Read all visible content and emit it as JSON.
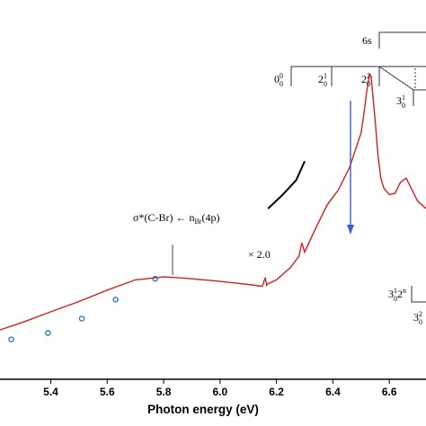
{
  "chart_data": {
    "type": "line",
    "xlabel": "Photon energy (eV)",
    "xlim": [
      5.22,
      6.73
    ],
    "ylim": [
      0,
      1
    ],
    "x_ticks": [
      "5.4",
      "5.6",
      "5.8",
      "6.0",
      "6.2",
      "6.4",
      "6.6"
    ],
    "x_tick_values": [
      5.4,
      5.6,
      5.8,
      6.0,
      6.2,
      6.4,
      6.6
    ],
    "colors": {
      "spectrum": "#d42020",
      "scaled": "#000000",
      "circles": "#1f6fb4",
      "arrow": "#3a5fd0"
    },
    "series": [
      {
        "kind": "line",
        "x": [
          5.22,
          5.3,
          5.4,
          5.5,
          5.6,
          5.7,
          5.8,
          5.85,
          5.9,
          6.0,
          6.1,
          6.15,
          6.16,
          6.165,
          6.17,
          6.2,
          6.25,
          6.28,
          6.29,
          6.3,
          6.34,
          6.38,
          6.42,
          6.46,
          6.48,
          6.5,
          6.51,
          6.52,
          6.53,
          6.535,
          6.54,
          6.55,
          6.56,
          6.57,
          6.58,
          6.59,
          6.6,
          6.62,
          6.64,
          6.66,
          6.68,
          6.7,
          6.73
        ],
        "y": [
          0.13,
          0.15,
          0.178,
          0.205,
          0.235,
          0.262,
          0.27,
          0.268,
          0.265,
          0.258,
          0.25,
          0.245,
          0.268,
          0.248,
          0.252,
          0.262,
          0.295,
          0.325,
          0.36,
          0.335,
          0.4,
          0.46,
          0.5,
          0.56,
          0.605,
          0.65,
          0.7,
          0.76,
          0.805,
          0.8,
          0.76,
          0.68,
          0.59,
          0.53,
          0.505,
          0.495,
          0.487,
          0.49,
          0.52,
          0.53,
          0.5,
          0.47,
          0.45
        ]
      },
      {
        "kind": "scaled-segment",
        "x": [
          6.17,
          6.22,
          6.27,
          6.3
        ],
        "y": [
          0.45,
          0.485,
          0.525,
          0.575
        ]
      },
      {
        "kind": "circles",
        "x": [
          5.26,
          5.39,
          5.51,
          5.63,
          5.77
        ],
        "y": [
          0.105,
          0.122,
          0.16,
          0.21,
          0.265
        ]
      }
    ],
    "annotations": {
      "transition_prefix": "σ*(C-Br) ← n",
      "transition_sub": "Br",
      "transition_suffix": "(4p)",
      "scale_label": "× 2.0",
      "rydberg_label": "6s",
      "prog_00_base": "0",
      "prog_00_sup": "0",
      "prog_00_sub": "0",
      "prog_21_base": "2",
      "prog_21_sup": "1",
      "prog_21_sub": "0",
      "prog_22_base": "2",
      "prog_22_sup": "2",
      "prog_22_sub": "0",
      "prog_31_base": "3",
      "prog_31_sup": "1",
      "prog_31_sub": "0",
      "prog_312n_a": "3",
      "prog_312n_sup1": "1",
      "prog_312n_sub1": "0",
      "prog_312n_b": "2",
      "prog_312n_sup2": "n",
      "prog_32_base": "3",
      "prog_32_sup": "2",
      "prog_32_sub": "0"
    }
  }
}
